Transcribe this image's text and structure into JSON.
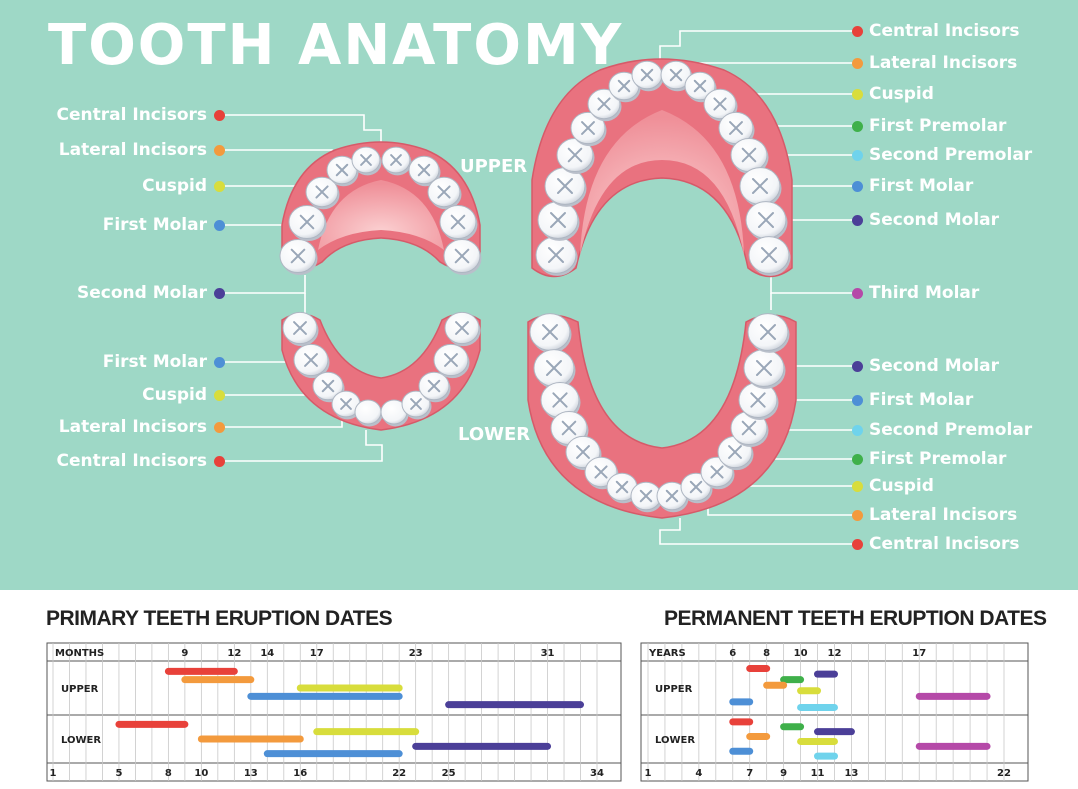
{
  "title": "TOOTH ANATOMY",
  "colors": {
    "background": "#9ed8c6",
    "gum": "#e9727f",
    "palate": "#f5a8ad",
    "central_incisors": "#e8413a",
    "lateral_incisors": "#f39a3d",
    "cuspid": "#d8dd3c",
    "first_premolar": "#3fb04a",
    "second_premolar": "#6fd3ec",
    "first_molar": "#4d8fd6",
    "second_molar": "#4b3f98",
    "third_molar": "#b549a8"
  },
  "jaw_labels": {
    "upper": "UPPER",
    "lower": "LOWER"
  },
  "primary_labels": {
    "upper": [
      {
        "text": "Central Incisors",
        "color": "#e8413a"
      },
      {
        "text": "Lateral Incisors",
        "color": "#f39a3d"
      },
      {
        "text": "Cuspid",
        "color": "#d8dd3c"
      },
      {
        "text": "First Molar",
        "color": "#4d8fd6"
      }
    ],
    "middle": {
      "text": "Second Molar",
      "color": "#4b3f98"
    },
    "lower": [
      {
        "text": "First Molar",
        "color": "#4d8fd6"
      },
      {
        "text": "Cuspid",
        "color": "#d8dd3c"
      },
      {
        "text": "Lateral Incisors",
        "color": "#f39a3d"
      },
      {
        "text": "Central Incisors",
        "color": "#e8413a"
      }
    ]
  },
  "permanent_labels": {
    "upper": [
      {
        "text": "Central Incisors",
        "color": "#e8413a"
      },
      {
        "text": "Lateral Incisors",
        "color": "#f39a3d"
      },
      {
        "text": "Cuspid",
        "color": "#d8dd3c"
      },
      {
        "text": "First Premolar",
        "color": "#3fb04a"
      },
      {
        "text": "Second Premolar",
        "color": "#6fd3ec"
      },
      {
        "text": "First Molar",
        "color": "#4d8fd6"
      },
      {
        "text": "Second Molar",
        "color": "#4b3f98"
      }
    ],
    "middle": {
      "text": "Third Molar",
      "color": "#b549a8"
    },
    "lower": [
      {
        "text": "Second Molar",
        "color": "#4b3f98"
      },
      {
        "text": "First Molar",
        "color": "#4d8fd6"
      },
      {
        "text": "Second Premolar",
        "color": "#6fd3ec"
      },
      {
        "text": "First Premolar",
        "color": "#3fb04a"
      },
      {
        "text": "Cuspid",
        "color": "#d8dd3c"
      },
      {
        "text": "Lateral Incisors",
        "color": "#f39a3d"
      },
      {
        "text": "Central Incisors",
        "color": "#e8413a"
      }
    ]
  },
  "primary_chart": {
    "title": "PRIMARY TEETH ERUPTION DATES",
    "unit_label": "MONTHS",
    "row_labels": [
      "UPPER",
      "LOWER"
    ],
    "axis_min": 1,
    "axis_max": 34,
    "top_ticks": [
      9,
      12,
      14,
      17,
      23,
      31
    ],
    "bottom_ticks": [
      1,
      5,
      8,
      10,
      13,
      16,
      22,
      25,
      34
    ],
    "upper_bars": [
      {
        "start": 8,
        "end": 12,
        "color": "#e8413a"
      },
      {
        "start": 9,
        "end": 13,
        "color": "#f39a3d"
      },
      {
        "start": 16,
        "end": 22,
        "color": "#d8dd3c"
      },
      {
        "start": 13,
        "end": 22,
        "color": "#4d8fd6"
      },
      {
        "start": 25,
        "end": 33,
        "color": "#4b3f98"
      }
    ],
    "lower_bars": [
      {
        "start": 5,
        "end": 9,
        "color": "#e8413a"
      },
      {
        "start": 17,
        "end": 23,
        "color": "#d8dd3c"
      },
      {
        "start": 10,
        "end": 16,
        "color": "#f39a3d"
      },
      {
        "start": 23,
        "end": 31,
        "color": "#4b3f98"
      },
      {
        "start": 14,
        "end": 22,
        "color": "#4d8fd6"
      }
    ]
  },
  "permanent_chart": {
    "title": "PERMANENT TEETH ERUPTION DATES",
    "unit_label": "YEARS",
    "row_labels": [
      "UPPER",
      "LOWER"
    ],
    "axis_min": 1,
    "axis_max": 22,
    "top_ticks": [
      6,
      8,
      10,
      12,
      17
    ],
    "bottom_ticks": [
      1,
      4,
      7,
      9,
      11,
      13,
      22
    ],
    "upper_bars": [
      {
        "start": 7,
        "end": 8,
        "color": "#e8413a"
      },
      {
        "start": 11,
        "end": 12,
        "color": "#4b3f98"
      },
      {
        "start": 9,
        "end": 10,
        "color": "#3fb04a"
      },
      {
        "start": 8,
        "end": 9,
        "color": "#f39a3d"
      },
      {
        "start": 10,
        "end": 11,
        "color": "#d8dd3c"
      },
      {
        "start": 17,
        "end": 21,
        "color": "#b549a8"
      },
      {
        "start": 6,
        "end": 7,
        "color": "#4d8fd6"
      },
      {
        "start": 10,
        "end": 12,
        "color": "#6fd3ec"
      }
    ],
    "lower_bars": [
      {
        "start": 6,
        "end": 7,
        "color": "#e8413a"
      },
      {
        "start": 9,
        "end": 10,
        "color": "#3fb04a"
      },
      {
        "start": 11,
        "end": 13,
        "color": "#4b3f98"
      },
      {
        "start": 7,
        "end": 8,
        "color": "#f39a3d"
      },
      {
        "start": 10,
        "end": 12,
        "color": "#d8dd3c"
      },
      {
        "start": 17,
        "end": 21,
        "color": "#b549a8"
      },
      {
        "start": 6,
        "end": 7,
        "color": "#4d8fd6"
      },
      {
        "start": 11,
        "end": 12,
        "color": "#6fd3ec"
      }
    ]
  }
}
